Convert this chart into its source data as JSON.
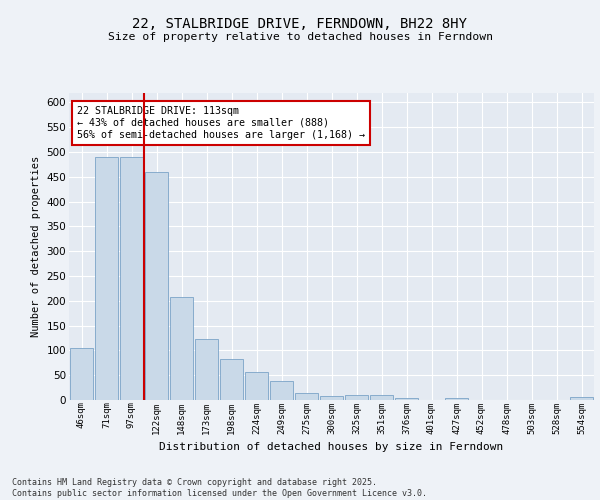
{
  "title": "22, STALBRIDGE DRIVE, FERNDOWN, BH22 8HY",
  "subtitle": "Size of property relative to detached houses in Ferndown",
  "xlabel": "Distribution of detached houses by size in Ferndown",
  "ylabel": "Number of detached properties",
  "categories": [
    "46sqm",
    "71sqm",
    "97sqm",
    "122sqm",
    "148sqm",
    "173sqm",
    "198sqm",
    "224sqm",
    "249sqm",
    "275sqm",
    "300sqm",
    "325sqm",
    "351sqm",
    "376sqm",
    "401sqm",
    "427sqm",
    "452sqm",
    "478sqm",
    "503sqm",
    "528sqm",
    "554sqm"
  ],
  "values": [
    105,
    490,
    490,
    460,
    207,
    122,
    82,
    57,
    38,
    14,
    8,
    10,
    11,
    4,
    0,
    5,
    0,
    0,
    0,
    0,
    6
  ],
  "bar_color": "#c9d9e8",
  "bar_edge_color": "#7ba3c8",
  "vline_x": 2.5,
  "annotation_text": "22 STALBRIDGE DRIVE: 113sqm\n← 43% of detached houses are smaller (888)\n56% of semi-detached houses are larger (1,168) →",
  "annotation_box_color": "#ffffff",
  "annotation_box_edge_color": "#cc0000",
  "vline_color": "#cc0000",
  "background_color": "#eef2f7",
  "plot_bg_color": "#e4eaf2",
  "grid_color": "#ffffff",
  "footnote": "Contains HM Land Registry data © Crown copyright and database right 2025.\nContains public sector information licensed under the Open Government Licence v3.0.",
  "ylim": [
    0,
    620
  ],
  "yticks": [
    0,
    50,
    100,
    150,
    200,
    250,
    300,
    350,
    400,
    450,
    500,
    550,
    600
  ]
}
